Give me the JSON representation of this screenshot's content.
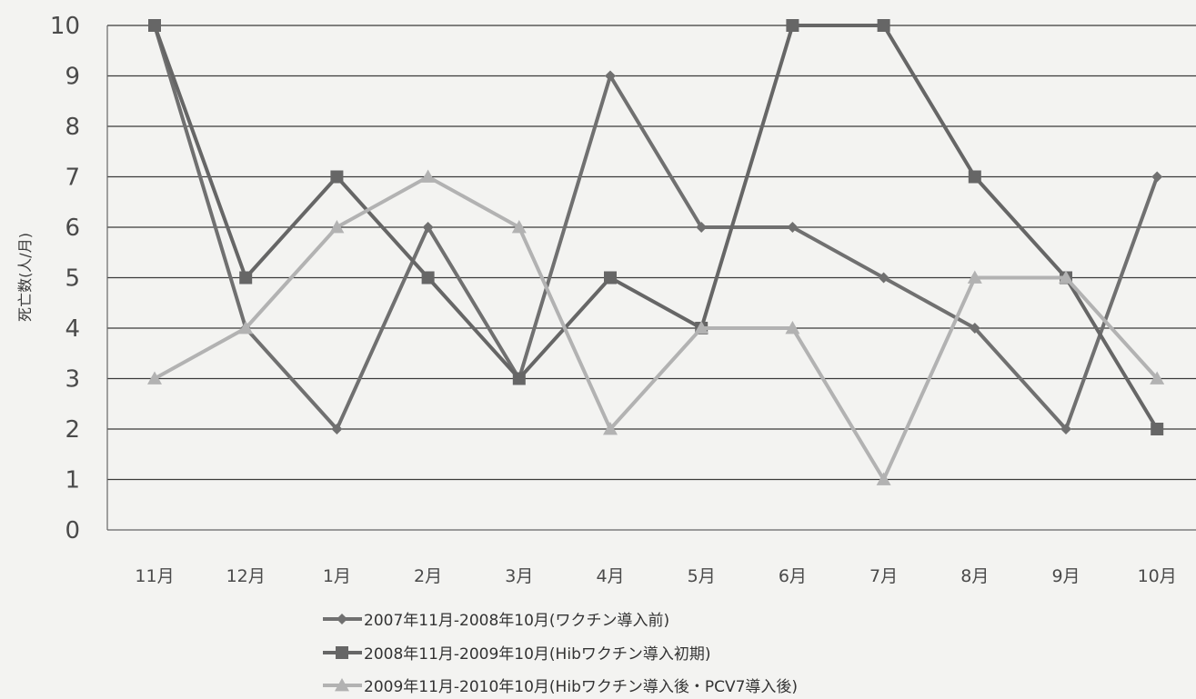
{
  "chart_data": {
    "type": "line",
    "title": "",
    "xlabel": "",
    "ylabel": "死亡数(人/月)",
    "categories": [
      "11月",
      "12月",
      "1月",
      "2月",
      "3月",
      "4月",
      "5月",
      "6月",
      "7月",
      "8月",
      "9月",
      "10月"
    ],
    "ylim": [
      0,
      10
    ],
    "yticks": [
      "0",
      "1",
      "2",
      "3",
      "4",
      "5",
      "6",
      "7",
      "8",
      "9",
      "10"
    ],
    "grid": true,
    "legend_position": "bottom",
    "series": [
      {
        "name": "2007年11月-2008年10月(ワクチン導入前)",
        "marker": "diamond",
        "color": "#707070",
        "values": [
          10,
          4,
          2,
          6,
          3,
          9,
          6,
          6,
          5,
          4,
          2,
          7
        ]
      },
      {
        "name": "2008年11月-2009年10月(Hibワクチン導入初期)",
        "marker": "square",
        "color": "#666666",
        "values": [
          10,
          5,
          7,
          5,
          3,
          5,
          4,
          10,
          10,
          7,
          5,
          2
        ]
      },
      {
        "name": "2009年11月-2010年10月(Hibワクチン導入後・PCV7導入後)",
        "marker": "triangle",
        "color": "#b2b2b2",
        "values": [
          3,
          4,
          6,
          7,
          6,
          2,
          4,
          4,
          1,
          5,
          5,
          3
        ]
      }
    ]
  }
}
